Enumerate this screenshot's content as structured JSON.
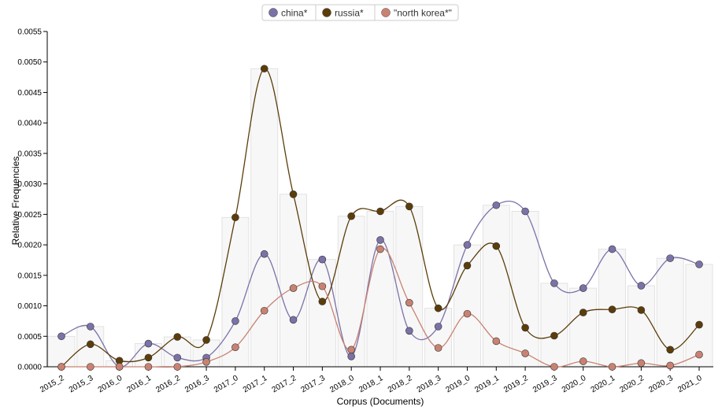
{
  "chart_data": {
    "type": "line",
    "xlabel": "Corpus (Documents)",
    "ylabel": "Relative Frequencies",
    "ylim": [
      0,
      0.0055
    ],
    "yticks": [
      "0.0000",
      "0.0005",
      "0.0010",
      "0.0015",
      "0.0020",
      "0.0025",
      "0.0030",
      "0.0035",
      "0.0040",
      "0.0045",
      "0.0050",
      "0.0055"
    ],
    "categories": [
      "2015_2",
      "2015_3",
      "2016_0",
      "2016_1",
      "2016_2",
      "2016_3",
      "2017_0",
      "2017_1",
      "2017_2",
      "2017_3",
      "2018_0",
      "2018_1",
      "2018_2",
      "2018_3",
      "2019_0",
      "2019_1",
      "2019_2",
      "2019_3",
      "2020_0",
      "2020_1",
      "2020_2",
      "2020_3",
      "2021_0"
    ],
    "legend_position": "top-center",
    "series": [
      {
        "name": "china*",
        "color": "#7b72a8",
        "values": [
          0.0005,
          0.00066,
          0.0,
          0.00038,
          0.00015,
          0.00015,
          0.00075,
          0.00185,
          0.00077,
          0.00176,
          0.00017,
          0.00208,
          0.00059,
          0.00066,
          0.002,
          0.00265,
          0.00255,
          0.00137,
          0.00129,
          0.00193,
          0.00133,
          0.00178,
          0.00168
        ]
      },
      {
        "name": "russia*",
        "color": "#5c3d0a",
        "values": [
          0.0,
          0.00037,
          0.0001,
          0.00015,
          0.00049,
          0.00044,
          0.00245,
          0.00489,
          0.00283,
          0.00107,
          0.00247,
          0.00255,
          0.00263,
          0.00096,
          0.00166,
          0.00198,
          0.00064,
          0.00051,
          0.00089,
          0.00094,
          0.00093,
          0.00028,
          0.00069
        ]
      },
      {
        "name": "\"north korea*\"",
        "color": "#c98272",
        "values": [
          0.0,
          0.0,
          0.0,
          0.0,
          0.0,
          8e-05,
          0.00032,
          0.00092,
          0.00129,
          0.00132,
          0.00028,
          0.00193,
          0.00105,
          0.00031,
          0.00087,
          0.00042,
          0.00022,
          0.0,
          9e-05,
          0.0,
          6e-05,
          2e-05,
          0.0002
        ]
      }
    ],
    "bar_values": [
      0.0005,
      0.00066,
      0.0001,
      0.00038,
      0.00049,
      0.00044,
      0.00245,
      0.00489,
      0.00283,
      0.00176,
      0.00247,
      0.00255,
      0.00263,
      0.00096,
      0.002,
      0.00265,
      0.00255,
      0.00137,
      0.00129,
      0.00193,
      0.00133,
      0.00178,
      0.00168
    ]
  }
}
